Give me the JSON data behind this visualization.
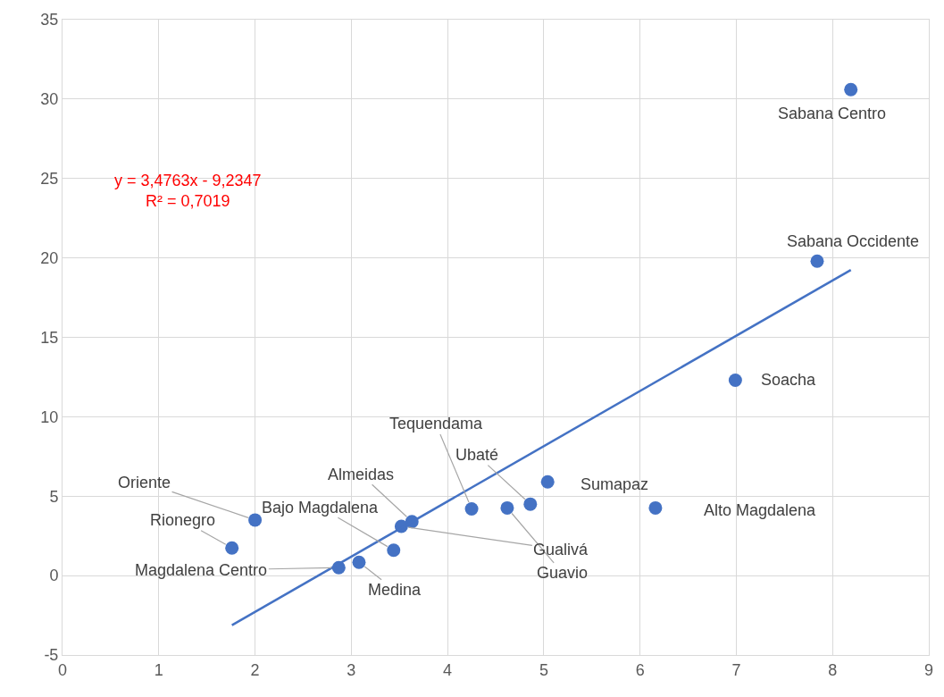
{
  "chart_data": {
    "type": "scatter",
    "grid": true,
    "xlim": [
      0,
      9
    ],
    "xticks": [
      0,
      1,
      2,
      3,
      4,
      5,
      6,
      7,
      8,
      9
    ],
    "ylim": [
      -5,
      35
    ],
    "yticks": [
      -5,
      0,
      5,
      10,
      15,
      20,
      25,
      30,
      35
    ],
    "series": [
      {
        "marker": "circle",
        "color": "#4472c4",
        "x": [
          8.19,
          7.84,
          6.99,
          6.16,
          5.04,
          4.86,
          4.25,
          4.62,
          3.52,
          3.63,
          3.44,
          3.08,
          2.87,
          2.0,
          1.76
        ],
        "values": [
          30.6,
          19.8,
          12.3,
          4.26,
          5.9,
          4.5,
          4.2,
          4.26,
          3.1,
          3.4,
          1.6,
          0.84,
          0.5,
          3.5,
          1.74
        ]
      },
      {
        "type": "line",
        "color": "#4472c4",
        "line_style": "solid",
        "x": [
          1.76,
          8.19
        ],
        "values": [
          -3.12,
          19.24
        ]
      }
    ],
    "annotations": [
      {
        "text": "Sabana Centro",
        "x": 8.19,
        "y": 30.6
      },
      {
        "text": "Sabana Occidente",
        "x": 7.84,
        "y": 19.8
      },
      {
        "text": "Soacha",
        "x": 6.99,
        "y": 12.3
      },
      {
        "text": "Alto Magdalena",
        "x": 6.16,
        "y": 4.26
      },
      {
        "text": "Sumapaz",
        "x": 5.04,
        "y": 5.9
      },
      {
        "text": "Ubaté",
        "x": 4.86,
        "y": 4.5
      },
      {
        "text": "Tequendama",
        "x": 4.25,
        "y": 4.2
      },
      {
        "text": "Guavio",
        "x": 4.62,
        "y": 4.26
      },
      {
        "text": "Gualivá",
        "x": 3.52,
        "y": 3.1
      },
      {
        "text": "Almeidas",
        "x": 3.63,
        "y": 3.4
      },
      {
        "text": "Bajo Magdalena",
        "x": 3.44,
        "y": 1.6
      },
      {
        "text": "Medina",
        "x": 3.08,
        "y": 0.84
      },
      {
        "text": "Magdalena Centro",
        "x": 2.87,
        "y": 0.5
      },
      {
        "text": "Oriente",
        "x": 2.0,
        "y": 3.5
      },
      {
        "text": "Rionegro",
        "x": 1.76,
        "y": 1.74
      },
      "y = 3,4763x - 9,2347",
      "R² = 0,7019"
    ]
  }
}
